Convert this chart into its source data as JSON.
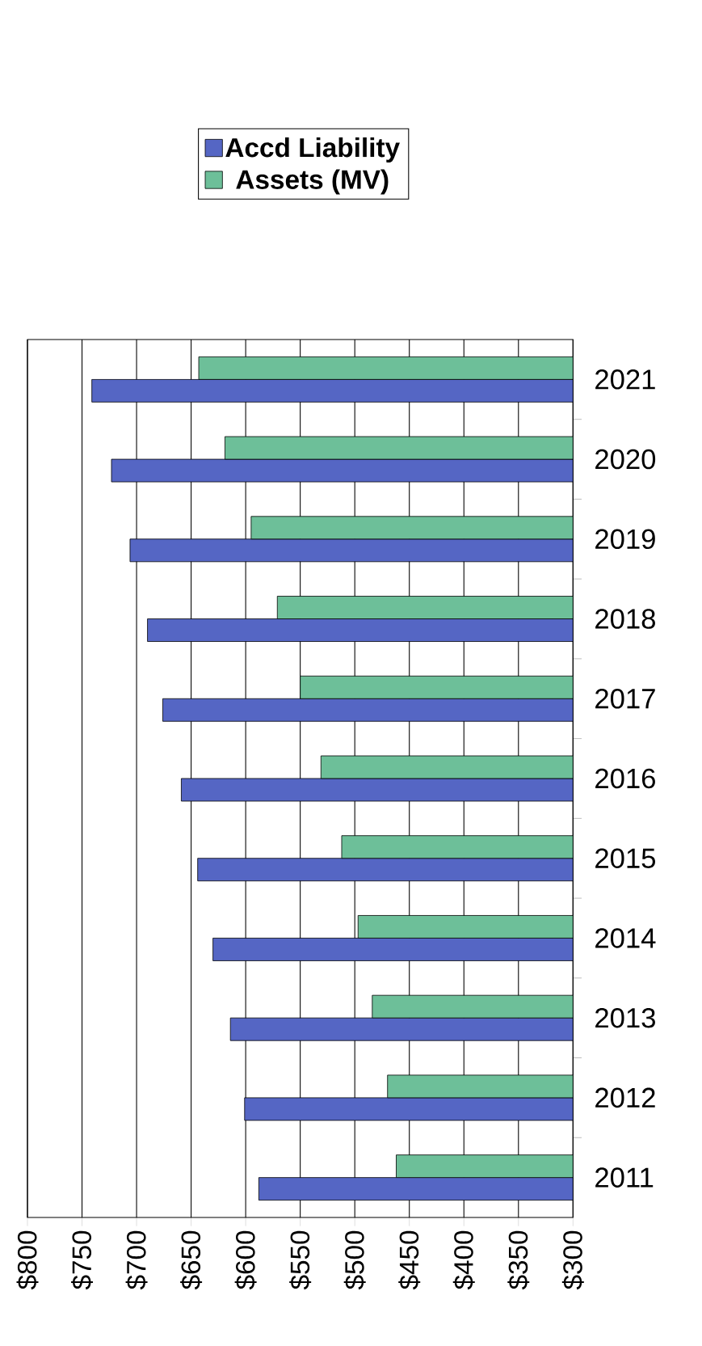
{
  "chart_data": {
    "type": "bar",
    "orientation": "horizontal",
    "categories": [
      "2021",
      "2020",
      "2019",
      "2018",
      "2017",
      "2016",
      "2015",
      "2014",
      "2013",
      "2012",
      "2011"
    ],
    "series": [
      {
        "name": "Accd Liability",
        "color": "#5566c4",
        "values": [
          741,
          723,
          706,
          690,
          676,
          659,
          644,
          630,
          614,
          601,
          588
        ]
      },
      {
        "name": "Assets (MV)",
        "color": "#6dbf99",
        "values": [
          643,
          619,
          595,
          571,
          550,
          531,
          512,
          497,
          484,
          470,
          462
        ]
      }
    ],
    "xlim": [
      800,
      300
    ],
    "xticks": [
      {
        "value": 800,
        "label": "$800"
      },
      {
        "value": 750,
        "label": "$750"
      },
      {
        "value": 700,
        "label": "$700"
      },
      {
        "value": 650,
        "label": "$650"
      },
      {
        "value": 600,
        "label": "$600"
      },
      {
        "value": 550,
        "label": "$550"
      },
      {
        "value": 500,
        "label": "$500"
      },
      {
        "value": 450,
        "label": "$450"
      },
      {
        "value": 400,
        "label": "$400"
      },
      {
        "value": 350,
        "label": "$350"
      },
      {
        "value": 300,
        "label": "$300"
      }
    ],
    "grid": "x",
    "legend": "top"
  }
}
